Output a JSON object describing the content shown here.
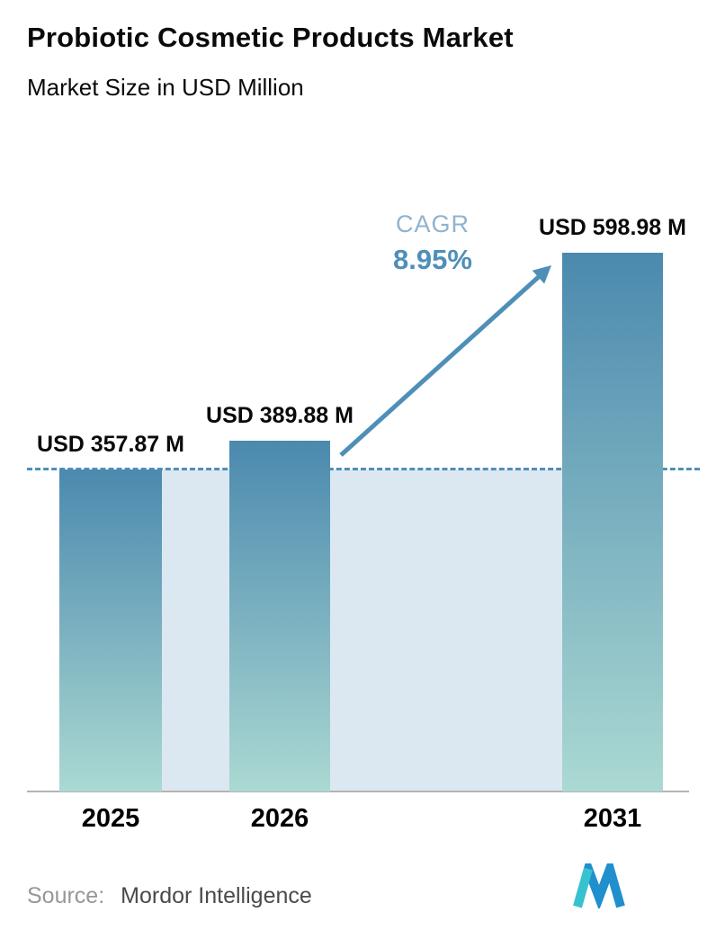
{
  "header": {
    "title": "Probiotic Cosmetic Products Market",
    "subtitle": "Market Size in USD Million"
  },
  "chart_data": {
    "type": "bar",
    "categories": [
      "2025",
      "2026",
      "2031"
    ],
    "values": [
      357.87,
      389.88,
      598.98
    ],
    "value_labels": [
      "USD 357.87 M",
      "USD 389.88 M",
      "USD 598.98 M"
    ],
    "title": "Probiotic Cosmetic Products Market",
    "subtitle": "Market Size in USD Million",
    "xlabel": "",
    "ylabel": "Market Size in USD Million",
    "ylim": [
      0,
      650
    ],
    "grid": false,
    "legend": "none",
    "annotations": {
      "cagr_label": "CAGR",
      "cagr_value": "8.95%",
      "reference_line_at_value": 357.87,
      "arrow": "from top of 2026 bar to top of 2031 bar"
    }
  },
  "footer": {
    "source_label": "Source:",
    "source_value": "Mordor Intelligence"
  },
  "colors": {
    "bar_top": "#4b89ae",
    "bar_bottom": "#abd9d2",
    "area_fill": "#dce8f1",
    "dashed_line": "#4e8fb8",
    "arrow": "#4e8fb8",
    "cagr_label": "#8fb3cd",
    "cagr_value": "#4e8fb8",
    "axis_line": "#b3b3b3",
    "logo_teal": "#36c3cf",
    "logo_blue": "#1f8fce"
  }
}
